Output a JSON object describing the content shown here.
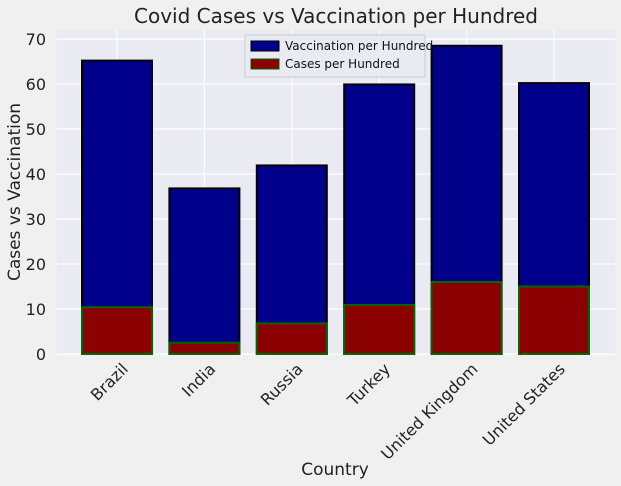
{
  "chart_data": {
    "type": "bar",
    "title": "Covid Cases vs Vaccination per Hundred",
    "xlabel": "Country",
    "ylabel": "Cases vs Vaccination",
    "categories": [
      "Brazil",
      "India",
      "Russia",
      "Turkey",
      "United Kingdom",
      "United States"
    ],
    "series": [
      {
        "name": "Vaccination per Hundred",
        "values": [
          65.2,
          36.8,
          41.9,
          59.9,
          68.5,
          60.2
        ],
        "color": "#00008b",
        "edge_color": "#000000"
      },
      {
        "name": "Cases per Hundred",
        "values": [
          10.4,
          2.5,
          6.8,
          10.9,
          16.0,
          15.0
        ],
        "color": "#8b0000",
        "edge_color": "#006400"
      }
    ],
    "ylim": [
      0,
      72
    ],
    "yticks": [
      0,
      10,
      20,
      30,
      40,
      50,
      60,
      70
    ],
    "grid": true,
    "legend_position": "top-center",
    "overlay": true,
    "plot_background": "#eaeaf2"
  }
}
